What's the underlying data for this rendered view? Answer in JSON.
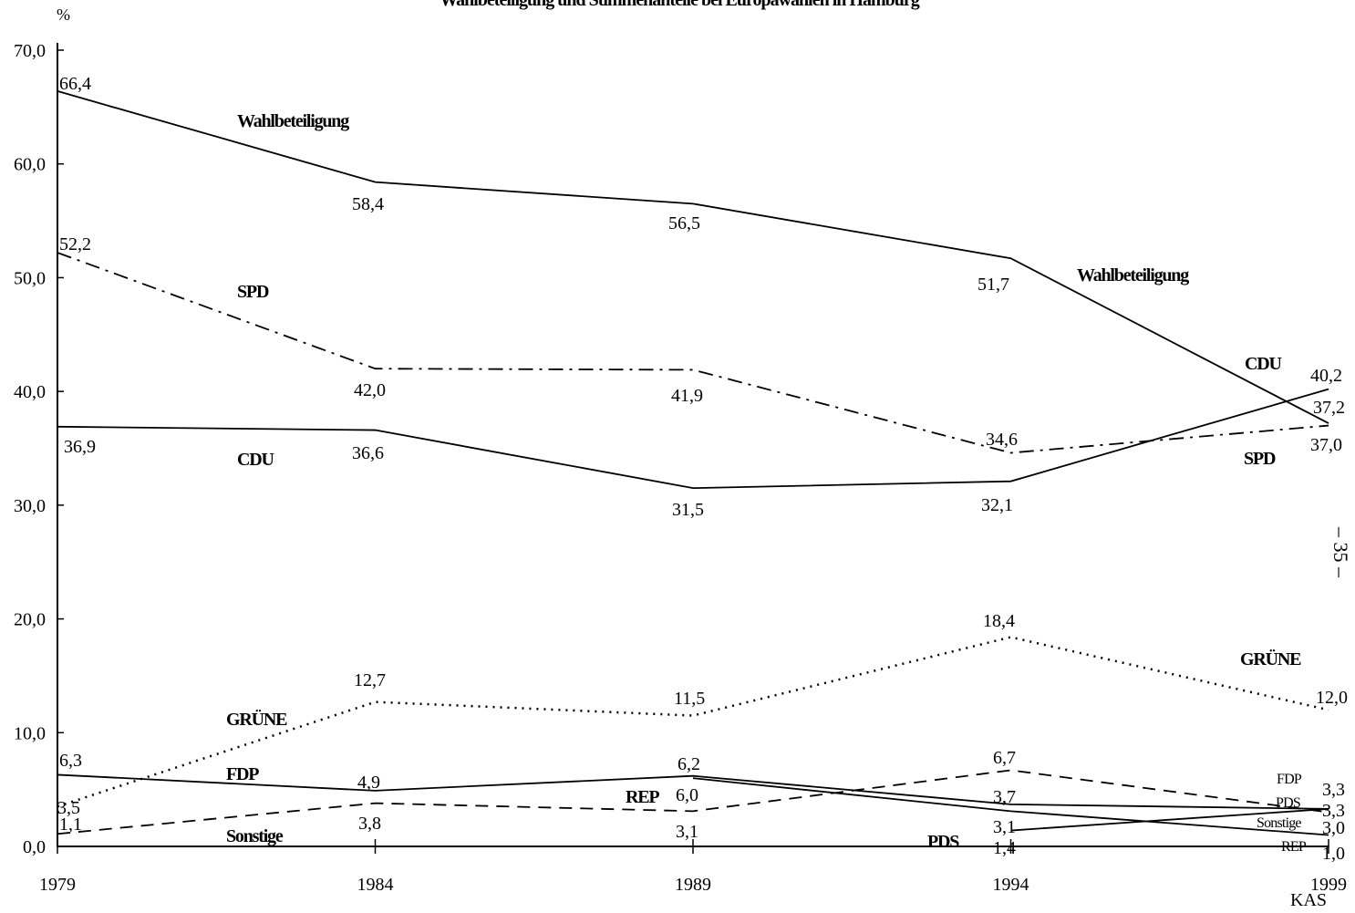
{
  "page_note": "– 35 –",
  "chart_data": {
    "type": "line",
    "title": "Wahlbeteiligung und Stimmenanteile bei Europawahlen in Hamburg",
    "ylabel": "%",
    "source": "KAS",
    "ylim": [
      0,
      70
    ],
    "yticks": [
      "0,0",
      "10,0",
      "20,0",
      "30,0",
      "40,0",
      "50,0",
      "60,0",
      "70,0"
    ],
    "x": [
      "1979",
      "1984",
      "1989",
      "1994",
      "1999"
    ],
    "series": [
      {
        "name": "Wahlbeteiligung",
        "style": "solid",
        "values": [
          66.4,
          58.4,
          56.5,
          51.7,
          37.2
        ],
        "labels": [
          "66,4",
          "58,4",
          "56,5",
          "51,7",
          "37,2"
        ]
      },
      {
        "name": "SPD",
        "style": "dashdot",
        "values": [
          52.2,
          42.0,
          41.9,
          34.6,
          37.0
        ],
        "labels": [
          "52,2",
          "42,0",
          "41,9",
          "34,6",
          "37,0"
        ]
      },
      {
        "name": "CDU",
        "style": "solid",
        "values": [
          36.9,
          36.6,
          31.5,
          32.1,
          40.2
        ],
        "labels": [
          "36,9",
          "36,6",
          "31,5",
          "32,1",
          "40,2"
        ]
      },
      {
        "name": "GRÜNE",
        "style": "dotted",
        "values": [
          3.5,
          12.7,
          11.5,
          18.4,
          12.0
        ],
        "labels": [
          "3,5",
          "12,7",
          "11,5",
          "18,4",
          "12,0"
        ]
      },
      {
        "name": "FDP",
        "style": "solid",
        "values": [
          6.3,
          4.9,
          6.2,
          3.7,
          3.3
        ],
        "labels": [
          "6,3",
          "4,9",
          "6,2",
          "3,7",
          "3,3"
        ]
      },
      {
        "name": "REP",
        "style": "solid",
        "values": [
          null,
          null,
          6.0,
          3.1,
          1.0
        ],
        "labels": [
          "",
          "",
          "6,0",
          "3,1",
          "1,0"
        ]
      },
      {
        "name": "Sonstige",
        "style": "dashed",
        "values": [
          1.1,
          3.8,
          3.1,
          6.7,
          3.0
        ],
        "labels": [
          "1,1",
          "3,8",
          "3,1",
          "6,7",
          "3,0"
        ]
      },
      {
        "name": "PDS",
        "style": "solid",
        "values": [
          null,
          null,
          null,
          1.4,
          3.3
        ],
        "labels": [
          "",
          "",
          "",
          "1,4",
          "3,3"
        ]
      }
    ],
    "series_labels": [
      {
        "series": "Wahlbeteiligung",
        "text": "Wahlbeteiligung"
      },
      {
        "series": "Wahlbeteiligung",
        "text": "Wahlbeteiligung"
      },
      {
        "series": "SPD",
        "text": "SPD"
      },
      {
        "series": "SPD",
        "text": "SPD"
      },
      {
        "series": "CDU",
        "text": "CDU"
      },
      {
        "series": "CDU",
        "text": "CDU"
      },
      {
        "series": "GRÜNE",
        "text": "GRÜNE"
      },
      {
        "series": "GRÜNE",
        "text": "GRÜNE"
      },
      {
        "series": "FDP",
        "text": "FDP"
      },
      {
        "series": "FDP",
        "text": "FDP"
      },
      {
        "series": "REP",
        "text": "REP"
      },
      {
        "series": "REP",
        "text": "REP"
      },
      {
        "series": "Sonstige",
        "text": "Sonstige"
      },
      {
        "series": "Sonstige",
        "text": "Sonstige"
      },
      {
        "series": "PDS",
        "text": "PDS"
      },
      {
        "series": "PDS",
        "text": "PDS"
      }
    ]
  }
}
